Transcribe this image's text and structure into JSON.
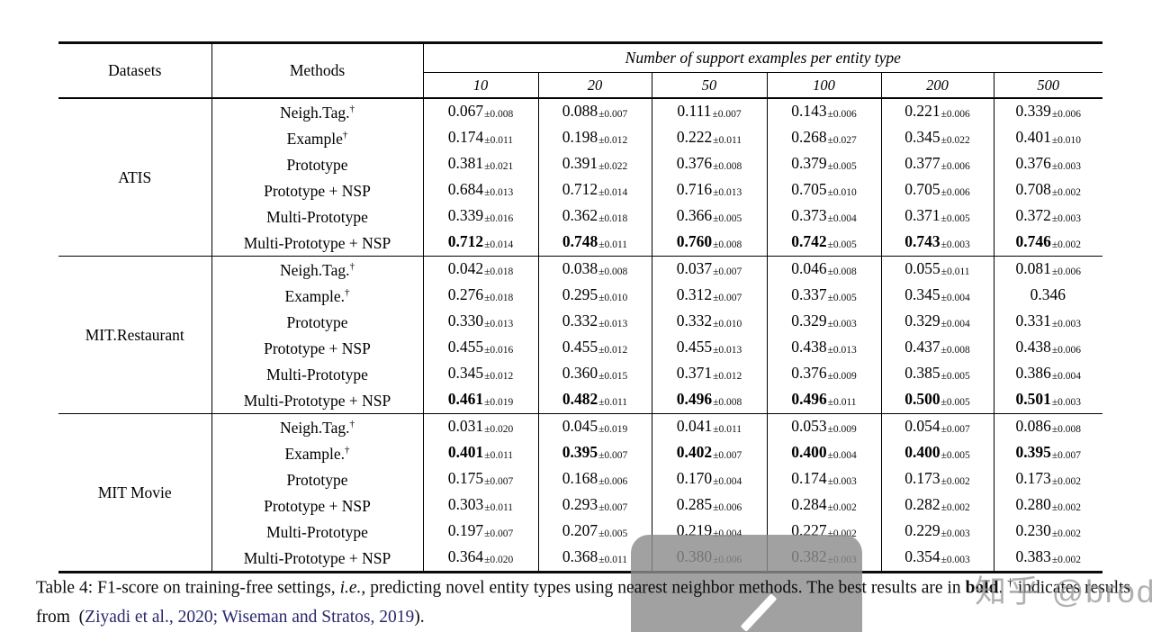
{
  "table": {
    "dagger_symbol": "†",
    "header": {
      "datasets_label": "Datasets",
      "methods_label": "Methods",
      "span_label": "Number of support examples per entity type",
      "support_sizes": [
        "10",
        "20",
        "50",
        "100",
        "200",
        "500"
      ]
    },
    "groups": [
      {
        "dataset": "ATIS",
        "rows": [
          {
            "method": "Neigh.Tag.",
            "dagger": true,
            "bold": false,
            "cells": [
              {
                "v": "0.067",
                "e": "±0.008"
              },
              {
                "v": "0.088",
                "e": "±0.007"
              },
              {
                "v": "0.111",
                "e": "±0.007"
              },
              {
                "v": "0.143",
                "e": "±0.006"
              },
              {
                "v": "0.221",
                "e": "±0.006"
              },
              {
                "v": "0.339",
                "e": "±0.006"
              }
            ]
          },
          {
            "method": "Example",
            "dagger": true,
            "bold": false,
            "cells": [
              {
                "v": "0.174",
                "e": "±0.011"
              },
              {
                "v": "0.198",
                "e": "±0.012"
              },
              {
                "v": "0.222",
                "e": "±0.011"
              },
              {
                "v": "0.268",
                "e": "±0.027"
              },
              {
                "v": "0.345",
                "e": "±0.022"
              },
              {
                "v": "0.401",
                "e": "±0.010"
              }
            ]
          },
          {
            "method": "Prototype",
            "dagger": false,
            "bold": false,
            "cells": [
              {
                "v": "0.381",
                "e": "±0.021"
              },
              {
                "v": "0.391",
                "e": "±0.022"
              },
              {
                "v": "0.376",
                "e": "±0.008"
              },
              {
                "v": "0.379",
                "e": "±0.005"
              },
              {
                "v": "0.377",
                "e": "±0.006"
              },
              {
                "v": "0.376",
                "e": "±0.003"
              }
            ]
          },
          {
            "method": "Prototype + NSP",
            "dagger": false,
            "bold": false,
            "cells": [
              {
                "v": "0.684",
                "e": "±0.013"
              },
              {
                "v": "0.712",
                "e": "±0.014"
              },
              {
                "v": "0.716",
                "e": "±0.013"
              },
              {
                "v": "0.705",
                "e": "±0.010"
              },
              {
                "v": "0.705",
                "e": "±0.006"
              },
              {
                "v": "0.708",
                "e": "±0.002"
              }
            ]
          },
          {
            "method": "Multi-Prototype",
            "dagger": false,
            "bold": false,
            "cells": [
              {
                "v": "0.339",
                "e": "±0.016"
              },
              {
                "v": "0.362",
                "e": "±0.018"
              },
              {
                "v": "0.366",
                "e": "±0.005"
              },
              {
                "v": "0.373",
                "e": "±0.004"
              },
              {
                "v": "0.371",
                "e": "±0.005"
              },
              {
                "v": "0.372",
                "e": "±0.003"
              }
            ]
          },
          {
            "method": "Multi-Prototype + NSP",
            "dagger": false,
            "bold": true,
            "cells": [
              {
                "v": "0.712",
                "e": "±0.014"
              },
              {
                "v": "0.748",
                "e": "±0.011"
              },
              {
                "v": "0.760",
                "e": "±0.008"
              },
              {
                "v": "0.742",
                "e": "±0.005"
              },
              {
                "v": "0.743",
                "e": "±0.003"
              },
              {
                "v": "0.746",
                "e": "±0.002"
              }
            ]
          }
        ]
      },
      {
        "dataset": "MIT.Restaurant",
        "rows": [
          {
            "method": "Neigh.Tag.",
            "dagger": true,
            "bold": false,
            "cells": [
              {
                "v": "0.042",
                "e": "±0.018"
              },
              {
                "v": "0.038",
                "e": "±0.008"
              },
              {
                "v": "0.037",
                "e": "±0.007"
              },
              {
                "v": "0.046",
                "e": "±0.008"
              },
              {
                "v": "0.055",
                "e": "±0.011"
              },
              {
                "v": "0.081",
                "e": "±0.006"
              }
            ]
          },
          {
            "method": "Example.",
            "dagger": true,
            "bold": false,
            "cells": [
              {
                "v": "0.276",
                "e": "±0.018"
              },
              {
                "v": "0.295",
                "e": "±0.010"
              },
              {
                "v": "0.312",
                "e": "±0.007"
              },
              {
                "v": "0.337",
                "e": "±0.005"
              },
              {
                "v": "0.345",
                "e": "±0.004"
              },
              {
                "v": "0.346",
                "e": ""
              }
            ]
          },
          {
            "method": "Prototype",
            "dagger": false,
            "bold": false,
            "cells": [
              {
                "v": "0.330",
                "e": "±0.013"
              },
              {
                "v": "0.332",
                "e": "±0.013"
              },
              {
                "v": "0.332",
                "e": "±0.010"
              },
              {
                "v": "0.329",
                "e": "±0.003"
              },
              {
                "v": "0.329",
                "e": "±0.004"
              },
              {
                "v": "0.331",
                "e": "±0.003"
              }
            ]
          },
          {
            "method": "Prototype + NSP",
            "dagger": false,
            "bold": false,
            "cells": [
              {
                "v": "0.455",
                "e": "±0.016"
              },
              {
                "v": "0.455",
                "e": "±0.012"
              },
              {
                "v": "0.455",
                "e": "±0.013"
              },
              {
                "v": "0.438",
                "e": "±0.013"
              },
              {
                "v": "0.437",
                "e": "±0.008"
              },
              {
                "v": "0.438",
                "e": "±0.006"
              }
            ]
          },
          {
            "method": "Multi-Prototype",
            "dagger": false,
            "bold": false,
            "cells": [
              {
                "v": "0.345",
                "e": "±0.012"
              },
              {
                "v": "0.360",
                "e": "±0.015"
              },
              {
                "v": "0.371",
                "e": "±0.012"
              },
              {
                "v": "0.376",
                "e": "±0.009"
              },
              {
                "v": "0.385",
                "e": "±0.005"
              },
              {
                "v": "0.386",
                "e": "±0.004"
              }
            ]
          },
          {
            "method": "Multi-Prototype + NSP",
            "dagger": false,
            "bold": true,
            "cells": [
              {
                "v": "0.461",
                "e": "±0.019"
              },
              {
                "v": "0.482",
                "e": "±0.011"
              },
              {
                "v": "0.496",
                "e": "±0.008"
              },
              {
                "v": "0.496",
                "e": "±0.011"
              },
              {
                "v": "0.500",
                "e": "±0.005"
              },
              {
                "v": "0.501",
                "e": "±0.003"
              }
            ]
          }
        ]
      },
      {
        "dataset": "MIT Movie",
        "rows": [
          {
            "method": "Neigh.Tag.",
            "dagger": true,
            "bold": false,
            "cells": [
              {
                "v": "0.031",
                "e": "±0.020"
              },
              {
                "v": "0.045",
                "e": "±0.019"
              },
              {
                "v": "0.041",
                "e": "±0.011"
              },
              {
                "v": "0.053",
                "e": "±0.009"
              },
              {
                "v": "0.054",
                "e": "±0.007"
              },
              {
                "v": "0.086",
                "e": "±0.008"
              }
            ]
          },
          {
            "method": "Example.",
            "dagger": true,
            "bold": true,
            "cells": [
              {
                "v": "0.401",
                "e": "±0.011"
              },
              {
                "v": "0.395",
                "e": "±0.007"
              },
              {
                "v": "0.402",
                "e": "±0.007"
              },
              {
                "v": "0.400",
                "e": "±0.004"
              },
              {
                "v": "0.400",
                "e": "±0.005"
              },
              {
                "v": "0.395",
                "e": "±0.007"
              }
            ]
          },
          {
            "method": "Prototype",
            "dagger": false,
            "bold": false,
            "cells": [
              {
                "v": "0.175",
                "e": "±0.007"
              },
              {
                "v": "0.168",
                "e": "±0.006"
              },
              {
                "v": "0.170",
                "e": "±0.004"
              },
              {
                "v": "0.174",
                "e": "±0.003"
              },
              {
                "v": "0.173",
                "e": "±0.002"
              },
              {
                "v": "0.173",
                "e": "±0.002"
              }
            ]
          },
          {
            "method": "Prototype + NSP",
            "dagger": false,
            "bold": false,
            "cells": [
              {
                "v": "0.303",
                "e": "±0.011"
              },
              {
                "v": "0.293",
                "e": "±0.007"
              },
              {
                "v": "0.285",
                "e": "±0.006"
              },
              {
                "v": "0.284",
                "e": "±0.002"
              },
              {
                "v": "0.282",
                "e": "±0.002"
              },
              {
                "v": "0.280",
                "e": "±0.002"
              }
            ]
          },
          {
            "method": "Multi-Prototype",
            "dagger": false,
            "bold": false,
            "cells": [
              {
                "v": "0.197",
                "e": "±0.007"
              },
              {
                "v": "0.207",
                "e": "±0.005"
              },
              {
                "v": "0.219",
                "e": "±0.004"
              },
              {
                "v": "0.227",
                "e": "±0.002"
              },
              {
                "v": "0.229",
                "e": "±0.003"
              },
              {
                "v": "0.230",
                "e": "±0.002"
              }
            ]
          },
          {
            "method": "Multi-Prototype + NSP",
            "dagger": false,
            "bold": false,
            "cells": [
              {
                "v": "0.364",
                "e": "±0.020"
              },
              {
                "v": "0.368",
                "e": "±0.011"
              },
              {
                "v": "0.380",
                "e": "±0.006"
              },
              {
                "v": "0.382",
                "e": "±0.003"
              },
              {
                "v": "0.354",
                "e": "±0.003"
              },
              {
                "v": "0.383",
                "e": "±0.002"
              }
            ]
          }
        ]
      }
    ]
  },
  "caption": {
    "segments": [
      {
        "t": "Table 4: F1-score on training-free settings, ",
        "style": "normal"
      },
      {
        "t": "i.e.,",
        "style": "italic"
      },
      {
        "t": " predicting novel entity types using nearest neighbor methods. The best results are in ",
        "style": "normal"
      },
      {
        "t": "bold",
        "style": "bold"
      },
      {
        "t": ". ",
        "style": "normal"
      },
      {
        "t": "†",
        "style": "sup"
      },
      {
        "t": " indicates results from  (",
        "style": "normal"
      },
      {
        "t": "Ziyadi et al., 2020; Wiseman and Stratos, 2019",
        "style": "cite"
      },
      {
        "t": ").",
        "style": "normal"
      }
    ]
  },
  "watermark": {
    "text": "知乎 @brod"
  },
  "colors": {
    "citation_blue": "#28286e",
    "watermark_gray": "#b7b7b7",
    "overlay_gray": "#8c8c8c",
    "rule_black": "#0a0a0a"
  }
}
